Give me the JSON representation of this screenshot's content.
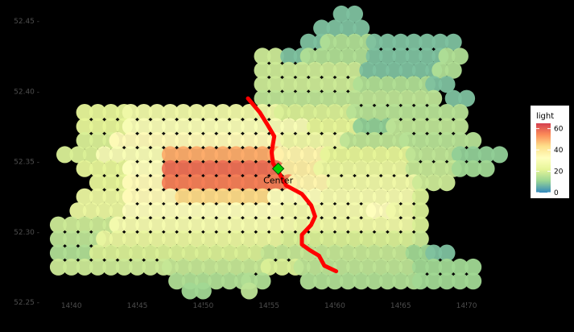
{
  "chart_data": {
    "type": "heatmap",
    "title": "",
    "xlabel": "",
    "ylabel": "",
    "xlim": [
      14.38,
      14.74
    ],
    "ylim": [
      52.25,
      52.465
    ],
    "x_ticks": [
      14.4,
      14.45,
      14.5,
      14.55,
      14.6,
      14.65,
      14.7
    ],
    "x_tick_labels": [
      "14.40",
      "14.45",
      "14.50",
      "14.55",
      "14.60",
      "14.65",
      "14.70"
    ],
    "y_ticks": [
      52.25,
      52.3,
      52.35,
      52.4,
      52.45
    ],
    "y_tick_labels": [
      "52.25 -",
      "52.30 -",
      "52.35 -",
      "52.40 -",
      "52.45 -"
    ],
    "grid": false,
    "legend": {
      "title": "light",
      "position": "right",
      "range": [
        0,
        65
      ],
      "ticks": [
        0,
        20,
        40,
        60
      ],
      "tick_labels": [
        "0",
        "20",
        "40",
        "60"
      ],
      "colors": [
        "#3288bd",
        "#99d594",
        "#e6f598",
        "#ffffbf",
        "#fee08b",
        "#fc8d59",
        "#d53e4f"
      ]
    },
    "hotspot_peak": {
      "lon": 14.52,
      "lat": 52.343,
      "light": 58
    },
    "secondary_peak": {
      "lon": 14.635,
      "lat": 52.313,
      "light": 33
    },
    "center": {
      "lon": 14.557,
      "lat": 52.345,
      "label": "Center",
      "color": "#00d000"
    },
    "path": {
      "color": "#ff0000",
      "points": [
        [
          14.534,
          52.395
        ],
        [
          14.543,
          52.385
        ],
        [
          14.549,
          52.376
        ],
        [
          14.554,
          52.368
        ],
        [
          14.552,
          52.357
        ],
        [
          14.553,
          52.349
        ],
        [
          14.557,
          52.343
        ],
        [
          14.563,
          52.333
        ],
        [
          14.575,
          52.327
        ],
        [
          14.582,
          52.319
        ],
        [
          14.585,
          52.311
        ],
        [
          14.582,
          52.305
        ],
        [
          14.575,
          52.298
        ],
        [
          14.575,
          52.291
        ],
        [
          14.581,
          52.287
        ],
        [
          14.588,
          52.283
        ],
        [
          14.592,
          52.276
        ],
        [
          14.601,
          52.272
        ]
      ]
    },
    "cells": [
      {
        "row": 52.455,
        "segments": [
          [
            14.605,
            14.615,
            8
          ]
        ]
      },
      {
        "row": 52.445,
        "segments": [
          [
            14.59,
            14.62,
            8
          ]
        ]
      },
      {
        "row": 52.435,
        "segments": [
          [
            14.58,
            14.59,
            8
          ],
          [
            14.595,
            14.625,
            14
          ],
          [
            14.63,
            14.69,
            8
          ]
        ]
      },
      {
        "row": 52.425,
        "segments": [
          [
            14.545,
            14.555,
            18
          ],
          [
            14.565,
            14.575,
            8
          ],
          [
            14.58,
            14.625,
            14
          ],
          [
            14.63,
            14.68,
            8
          ],
          [
            14.685,
            14.695,
            14
          ]
        ]
      },
      {
        "row": 52.415,
        "segments": [
          [
            14.545,
            14.62,
            18
          ],
          [
            14.625,
            14.675,
            8
          ],
          [
            14.68,
            14.695,
            14
          ]
        ]
      },
      {
        "row": 52.405,
        "segments": [
          [
            14.545,
            14.615,
            18
          ],
          [
            14.62,
            14.67,
            14
          ],
          [
            14.675,
            14.69,
            8
          ]
        ]
      },
      {
        "row": 52.395,
        "segments": [
          [
            14.545,
            14.68,
            16
          ],
          [
            14.69,
            14.7,
            8
          ]
        ]
      },
      {
        "row": 52.385,
        "segments": [
          [
            14.41,
            14.44,
            22
          ],
          [
            14.445,
            14.555,
            26
          ],
          [
            14.56,
            14.61,
            20
          ],
          [
            14.615,
            14.7,
            15
          ]
        ]
      },
      {
        "row": 52.375,
        "segments": [
          [
            14.41,
            14.44,
            22
          ],
          [
            14.445,
            14.58,
            30
          ],
          [
            14.585,
            14.615,
            22
          ],
          [
            14.62,
            14.64,
            10
          ],
          [
            14.645,
            14.7,
            16
          ]
        ]
      },
      {
        "row": 52.365,
        "segments": [
          [
            14.41,
            14.43,
            20
          ],
          [
            14.435,
            14.56,
            34
          ],
          [
            14.565,
            14.605,
            26
          ],
          [
            14.61,
            14.65,
            16
          ],
          [
            14.655,
            14.705,
            15
          ]
        ]
      },
      {
        "row": 52.355,
        "segments": [
          [
            14.395,
            14.42,
            20
          ],
          [
            14.425,
            14.47,
            30
          ],
          [
            14.475,
            14.555,
            50
          ],
          [
            14.56,
            14.59,
            36
          ],
          [
            14.595,
            14.655,
            22
          ],
          [
            14.66,
            14.69,
            16
          ],
          [
            14.695,
            14.725,
            10
          ]
        ]
      },
      {
        "row": 52.345,
        "segments": [
          [
            14.41,
            14.44,
            22
          ],
          [
            14.445,
            14.47,
            32
          ],
          [
            14.475,
            14.56,
            58
          ],
          [
            14.565,
            14.585,
            38
          ],
          [
            14.59,
            14.655,
            24
          ],
          [
            14.66,
            14.69,
            17
          ],
          [
            14.695,
            14.715,
            12
          ]
        ]
      },
      {
        "row": 52.335,
        "segments": [
          [
            14.42,
            14.44,
            22
          ],
          [
            14.445,
            14.47,
            34
          ],
          [
            14.475,
            14.565,
            56
          ],
          [
            14.57,
            14.595,
            36
          ],
          [
            14.6,
            14.66,
            26
          ],
          [
            14.665,
            14.69,
            18
          ]
        ]
      },
      {
        "row": 52.325,
        "segments": [
          [
            14.41,
            14.44,
            24
          ],
          [
            14.445,
            14.48,
            34
          ],
          [
            14.485,
            14.55,
            44
          ],
          [
            14.555,
            14.59,
            32
          ],
          [
            14.595,
            14.66,
            28
          ],
          [
            14.665,
            14.67,
            20
          ]
        ]
      },
      {
        "row": 52.315,
        "segments": [
          [
            14.405,
            14.44,
            24
          ],
          [
            14.445,
            14.56,
            32
          ],
          [
            14.565,
            14.625,
            28
          ],
          [
            14.63,
            14.64,
            33
          ],
          [
            14.645,
            14.66,
            26
          ],
          [
            14.665,
            14.67,
            20
          ]
        ]
      },
      {
        "row": 52.305,
        "segments": [
          [
            14.39,
            14.43,
            18
          ],
          [
            14.435,
            14.57,
            28
          ],
          [
            14.575,
            14.66,
            26
          ],
          [
            14.665,
            14.67,
            20
          ]
        ]
      },
      {
        "row": 52.295,
        "segments": [
          [
            14.39,
            14.42,
            16
          ],
          [
            14.425,
            14.56,
            24
          ],
          [
            14.565,
            14.66,
            20
          ],
          [
            14.665,
            14.67,
            18
          ]
        ]
      },
      {
        "row": 52.285,
        "segments": [
          [
            14.39,
            14.415,
            14
          ],
          [
            14.42,
            14.545,
            20
          ],
          [
            14.55,
            14.655,
            17
          ],
          [
            14.66,
            14.67,
            12
          ],
          [
            14.675,
            14.685,
            8
          ]
        ]
      },
      {
        "row": 52.275,
        "segments": [
          [
            14.39,
            14.47,
            18
          ],
          [
            14.475,
            14.545,
            17
          ],
          [
            14.55,
            14.57,
            20
          ],
          [
            14.575,
            14.66,
            16
          ],
          [
            14.665,
            14.71,
            12
          ]
        ]
      },
      {
        "row": 52.265,
        "segments": [
          [
            14.48,
            14.53,
            14
          ],
          [
            14.535,
            14.55,
            14
          ],
          [
            14.58,
            14.66,
            14
          ],
          [
            14.665,
            14.705,
            12
          ]
        ]
      },
      {
        "row": 52.258,
        "segments": [
          [
            14.49,
            14.5,
            12
          ],
          [
            14.535,
            14.535,
            16
          ]
        ]
      }
    ]
  }
}
